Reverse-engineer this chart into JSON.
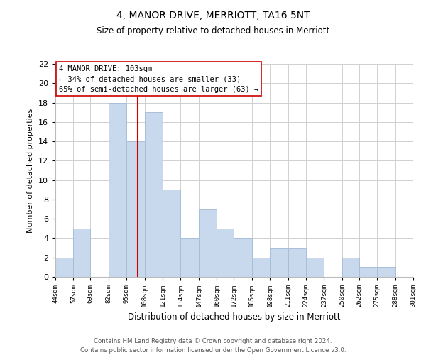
{
  "title": "4, MANOR DRIVE, MERRIOTT, TA16 5NT",
  "subtitle": "Size of property relative to detached houses in Merriott",
  "xlabel": "Distribution of detached houses by size in Merriott",
  "ylabel": "Number of detached properties",
  "bar_color": "#c8d9ed",
  "bar_edge_color": "#a8bfd8",
  "bins": [
    44,
    57,
    69,
    82,
    95,
    108,
    121,
    134,
    147,
    160,
    172,
    185,
    198,
    211,
    224,
    237,
    250,
    262,
    275,
    288,
    301
  ],
  "bin_labels": [
    "44sqm",
    "57sqm",
    "69sqm",
    "82sqm",
    "95sqm",
    "108sqm",
    "121sqm",
    "134sqm",
    "147sqm",
    "160sqm",
    "172sqm",
    "185sqm",
    "198sqm",
    "211sqm",
    "224sqm",
    "237sqm",
    "250sqm",
    "262sqm",
    "275sqm",
    "288sqm",
    "301sqm"
  ],
  "counts": [
    2,
    5,
    0,
    18,
    14,
    17,
    9,
    4,
    7,
    5,
    4,
    2,
    3,
    3,
    2,
    0,
    2,
    1,
    1,
    0
  ],
  "ylim": [
    0,
    22
  ],
  "yticks": [
    0,
    2,
    4,
    6,
    8,
    10,
    12,
    14,
    16,
    18,
    20,
    22
  ],
  "red_line_x": 103,
  "property_label": "4 MANOR DRIVE: 103sqm",
  "annotation_line1": "← 34% of detached houses are smaller (33)",
  "annotation_line2": "65% of semi-detached houses are larger (63) →",
  "red_line_color": "#cc0000",
  "annotation_box_color": "#ffffff",
  "annotation_box_edge": "#cc0000",
  "footer_line1": "Contains HM Land Registry data © Crown copyright and database right 2024.",
  "footer_line2": "Contains public sector information licensed under the Open Government Licence v3.0.",
  "background_color": "#ffffff",
  "grid_color": "#d0d0d0"
}
